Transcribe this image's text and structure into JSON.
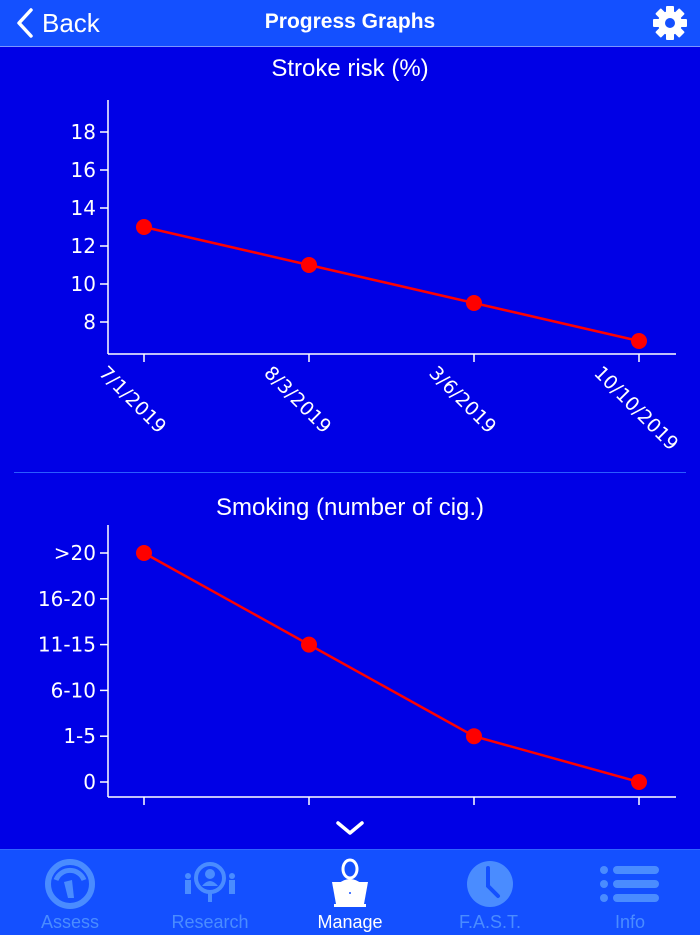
{
  "nav": {
    "back_label": "Back",
    "title": "Progress Graphs",
    "settings_icon": "gear-icon"
  },
  "colors": {
    "nav_bg": "#1450ff",
    "page_bg": "#0000e6",
    "line": "#ff0000",
    "tab_inactive": "#4a8cff"
  },
  "chart_data": [
    {
      "type": "line",
      "title": "Stroke risk (%)",
      "categories": [
        "7/1/2019",
        "8/3/2019",
        "3/6/2019",
        "10/10/2019"
      ],
      "values": [
        13,
        11,
        9,
        7
      ],
      "yticks": [
        8,
        10,
        12,
        14,
        16,
        18
      ],
      "ylim": [
        6.4,
        19.7
      ],
      "grid": false
    },
    {
      "type": "line",
      "title": "Smoking (number of cig.)",
      "categories": [
        "",
        "",
        "",
        ""
      ],
      "yticks": [
        "0",
        "1-5",
        "6-10",
        "11-15",
        "16-20",
        ">20"
      ],
      "values": [
        ">20",
        "11-15",
        "1-5",
        "0"
      ],
      "grid": false
    }
  ],
  "tabs": [
    {
      "label": "Assess",
      "icon": "gauge-icon",
      "active": false
    },
    {
      "label": "Research",
      "icon": "research-people-icon",
      "active": false
    },
    {
      "label": "Manage",
      "icon": "person-laptop-icon",
      "active": true
    },
    {
      "label": "F.A.S.T.",
      "icon": "clock-icon",
      "active": false
    },
    {
      "label": "Info",
      "icon": "list-icon",
      "active": false
    }
  ]
}
